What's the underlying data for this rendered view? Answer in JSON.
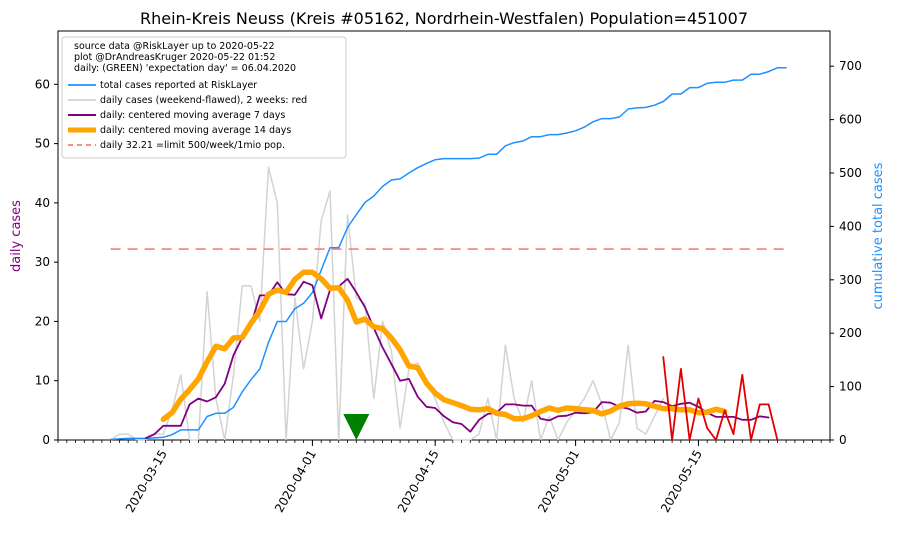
{
  "chart_data": {
    "type": "line",
    "title": "Rhein-Kreis Neuss (Kreis #05162, Nordrhein-Westfalen) Population=451007",
    "ylabel_left": "daily cases",
    "ylabel_right": "cumulative total cases",
    "xlabel": "",
    "x_start_date": "2020-03-09",
    "xlim": [
      "2020-03-03",
      "2020-05-30"
    ],
    "ylim_left": [
      0,
      69
    ],
    "ylim_right": [
      0,
      766
    ],
    "x_ticks": [
      "2020-03-15",
      "2020-04-01",
      "2020-04-15",
      "2020-05-01",
      "2020-05-15"
    ],
    "y_ticks_left": [
      0,
      10,
      20,
      30,
      40,
      50,
      60
    ],
    "y_ticks_right": [
      0,
      100,
      200,
      300,
      400,
      500,
      600,
      700
    ],
    "grid": false,
    "legend_position": "top-left",
    "legend_info": [
      "source data @RiskLayer up to 2020-05-22",
      "plot @DrAndreasKruger 2020-05-22 01:52",
      "daily: (GREEN) 'expectation day' = 06.04.2020"
    ],
    "threshold_value": 32.21,
    "expectation_day": "2020-04-06",
    "series": [
      {
        "name": "total cases reported at RiskLayer",
        "axis": "right",
        "color": "#1e90ff",
        "values": [
          1,
          2,
          3,
          3,
          3,
          4,
          5,
          10,
          19,
          19,
          19,
          44,
          50,
          50,
          61,
          90,
          113,
          133,
          183,
          222,
          222,
          246,
          256,
          276,
          318,
          360,
          360,
          398,
          422,
          445,
          457,
          475,
          487,
          489,
          500,
          510,
          518,
          525,
          527,
          527,
          527,
          527,
          528,
          535,
          535,
          551,
          557,
          560,
          568,
          568,
          572,
          572,
          575,
          579,
          586,
          596,
          602,
          602,
          605,
          620,
          622,
          623,
          627,
          634,
          648,
          648,
          660,
          660,
          668,
          670,
          670,
          674,
          674,
          685,
          685,
          690,
          697,
          697
        ]
      },
      {
        "name": "daily cases (weekend-flawed), 2 weeks: red",
        "axis": "left",
        "color": "#d3d3d3",
        "values": [
          0,
          1,
          1,
          0,
          0,
          1,
          1,
          5,
          11,
          0,
          0,
          25,
          7,
          0,
          11,
          26,
          26,
          20,
          46,
          40,
          0,
          24,
          12,
          20,
          37,
          42,
          0,
          38,
          24,
          23,
          7,
          20,
          15,
          2,
          12,
          13,
          10,
          7,
          3,
          0,
          0,
          0,
          1,
          7,
          0,
          16,
          7,
          3,
          10,
          0,
          4,
          0,
          3,
          5,
          7,
          10,
          6,
          0,
          3,
          16,
          2,
          1,
          4,
          7
        ]
      },
      {
        "name": "daily: centered moving average 7 days",
        "axis": "left",
        "color": "#800080",
        "values": [
          0.3,
          1,
          2.4,
          2.4,
          2.4,
          6,
          7,
          6.5,
          7.2,
          9.5,
          14.3,
          17.3,
          19.4,
          24.4,
          24.4,
          26.6,
          24.6,
          24.5,
          26.7,
          26.1,
          20.5,
          25.3,
          25.9,
          27.2,
          24.9,
          22.4,
          18.9,
          15.6,
          12.8,
          10,
          10.3,
          7.3,
          5.6,
          5.4,
          4,
          3,
          2.7,
          1.4,
          3.4,
          4.4,
          4.6,
          6,
          6,
          5.8,
          5.8,
          3.6,
          3.3,
          4,
          4.1,
          4.6,
          4.5,
          4.7,
          6.4,
          6.3,
          5.6,
          5.3,
          4.6,
          4.8,
          6.6,
          6.4,
          5.7,
          6.1,
          6.3,
          5.6,
          4.6,
          3.9,
          3.9,
          3.9,
          3.4,
          3.4,
          4,
          3.8
        ]
      },
      {
        "name": "daily: centered moving average 14 days",
        "axis": "left",
        "color": "#ffa500",
        "values": [
          3.5,
          4.6,
          6.9,
          8.5,
          10.3,
          13.2,
          15.8,
          15.4,
          17.2,
          17.3,
          19.7,
          21.8,
          24.6,
          25.3,
          24.9,
          27.1,
          28.3,
          28.3,
          27.2,
          25.6,
          25.7,
          23.6,
          19.9,
          20.4,
          19.1,
          18.8,
          17.2,
          15.2,
          12.5,
          12.2,
          9.6,
          7.9,
          6.8,
          6.3,
          5.8,
          5.2,
          5.1,
          5.3,
          4.5,
          4.3,
          3.6,
          3.6,
          4.1,
          4.8,
          5.4,
          5,
          5.4,
          5.3,
          5.1,
          5,
          4.4,
          4.9,
          5.7,
          6.1,
          6.2,
          6.1,
          5.7,
          5.3,
          5.3,
          5.1,
          5.1,
          4.6,
          4.7,
          5.2,
          4.8
        ]
      },
      {
        "name": "daily 32.21 =limit 500/week/1mio pop.",
        "axis": "left",
        "color": "#f08080",
        "values": [
          32.21,
          32.21
        ]
      },
      {
        "name": "",
        "axis": "left",
        "color": "#e00000",
        "values": [
          14,
          0,
          12,
          0,
          7,
          2,
          0,
          5,
          1,
          11,
          0,
          6,
          6,
          0
        ]
      }
    ]
  }
}
